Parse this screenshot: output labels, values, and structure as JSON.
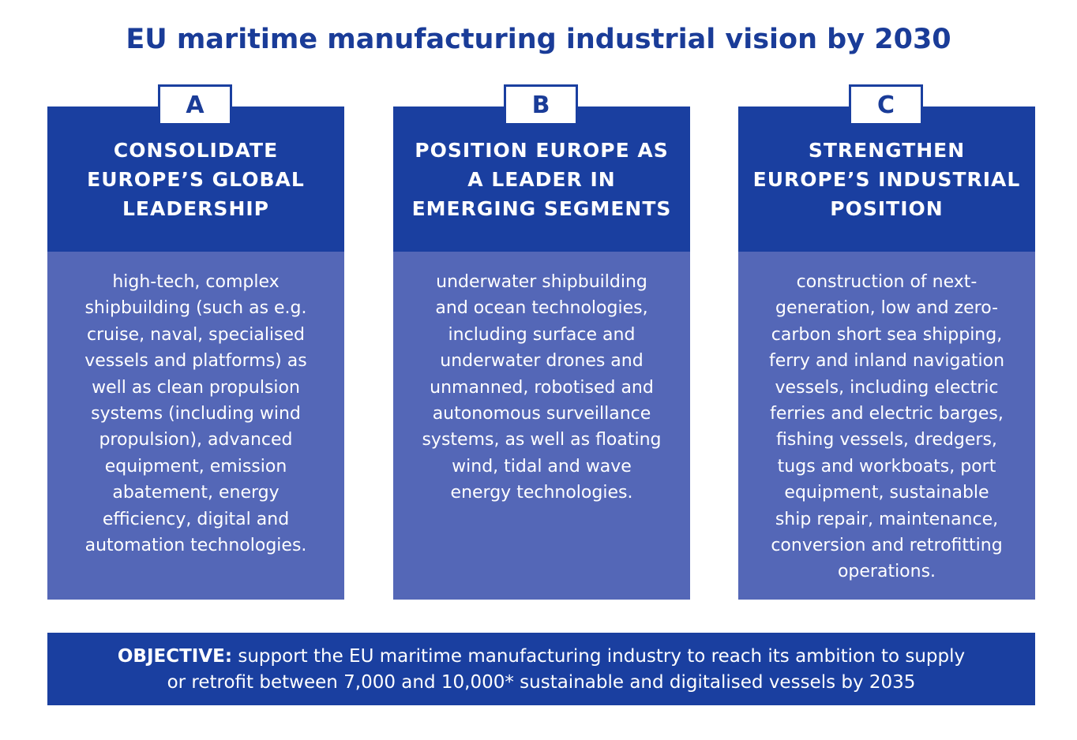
{
  "title": "EU maritime manufacturing industrial vision by 2030",
  "columns": [
    {
      "letter": "A",
      "heading": "CONSOLIDATE EUROPE’S GLOBAL LEADERSHIP",
      "body": "high-tech, complex shipbuilding (such as e.g. cruise, naval, specialised vessels and platforms) as well as clean propulsion systems (including wind propulsion), advanced equipment, emission abatement, energy efficiency, digital and automation technologies."
    },
    {
      "letter": "B",
      "heading": "POSITION EUROPE AS A LEADER IN EMERGING SEGMENTS",
      "body": "underwater shipbuilding and ocean technologies, including surface and underwater drones and unmanned, robotised and autonomous surveillance systems, as well as floating wind, tidal and wave energy technologies."
    },
    {
      "letter": "C",
      "heading": "STRENGTHEN EUROPE’S INDUSTRIAL POSITION",
      "body": "construction of next-generation, low and zero-carbon short sea shipping, ferry and inland navigation vessels, including electric ferries and electric barges, fishing vessels, dredgers, tugs and workboats, port equipment, sustainable ship repair, maintenance, conversion and retrofitting operations."
    }
  ],
  "objective": {
    "label": "OBJECTIVE:",
    "text": "support the EU maritime manufacturing industry to reach its ambition to supply or retrofit between 7,000 and 10,000* sustainable and digitalised vessels by 2035"
  }
}
